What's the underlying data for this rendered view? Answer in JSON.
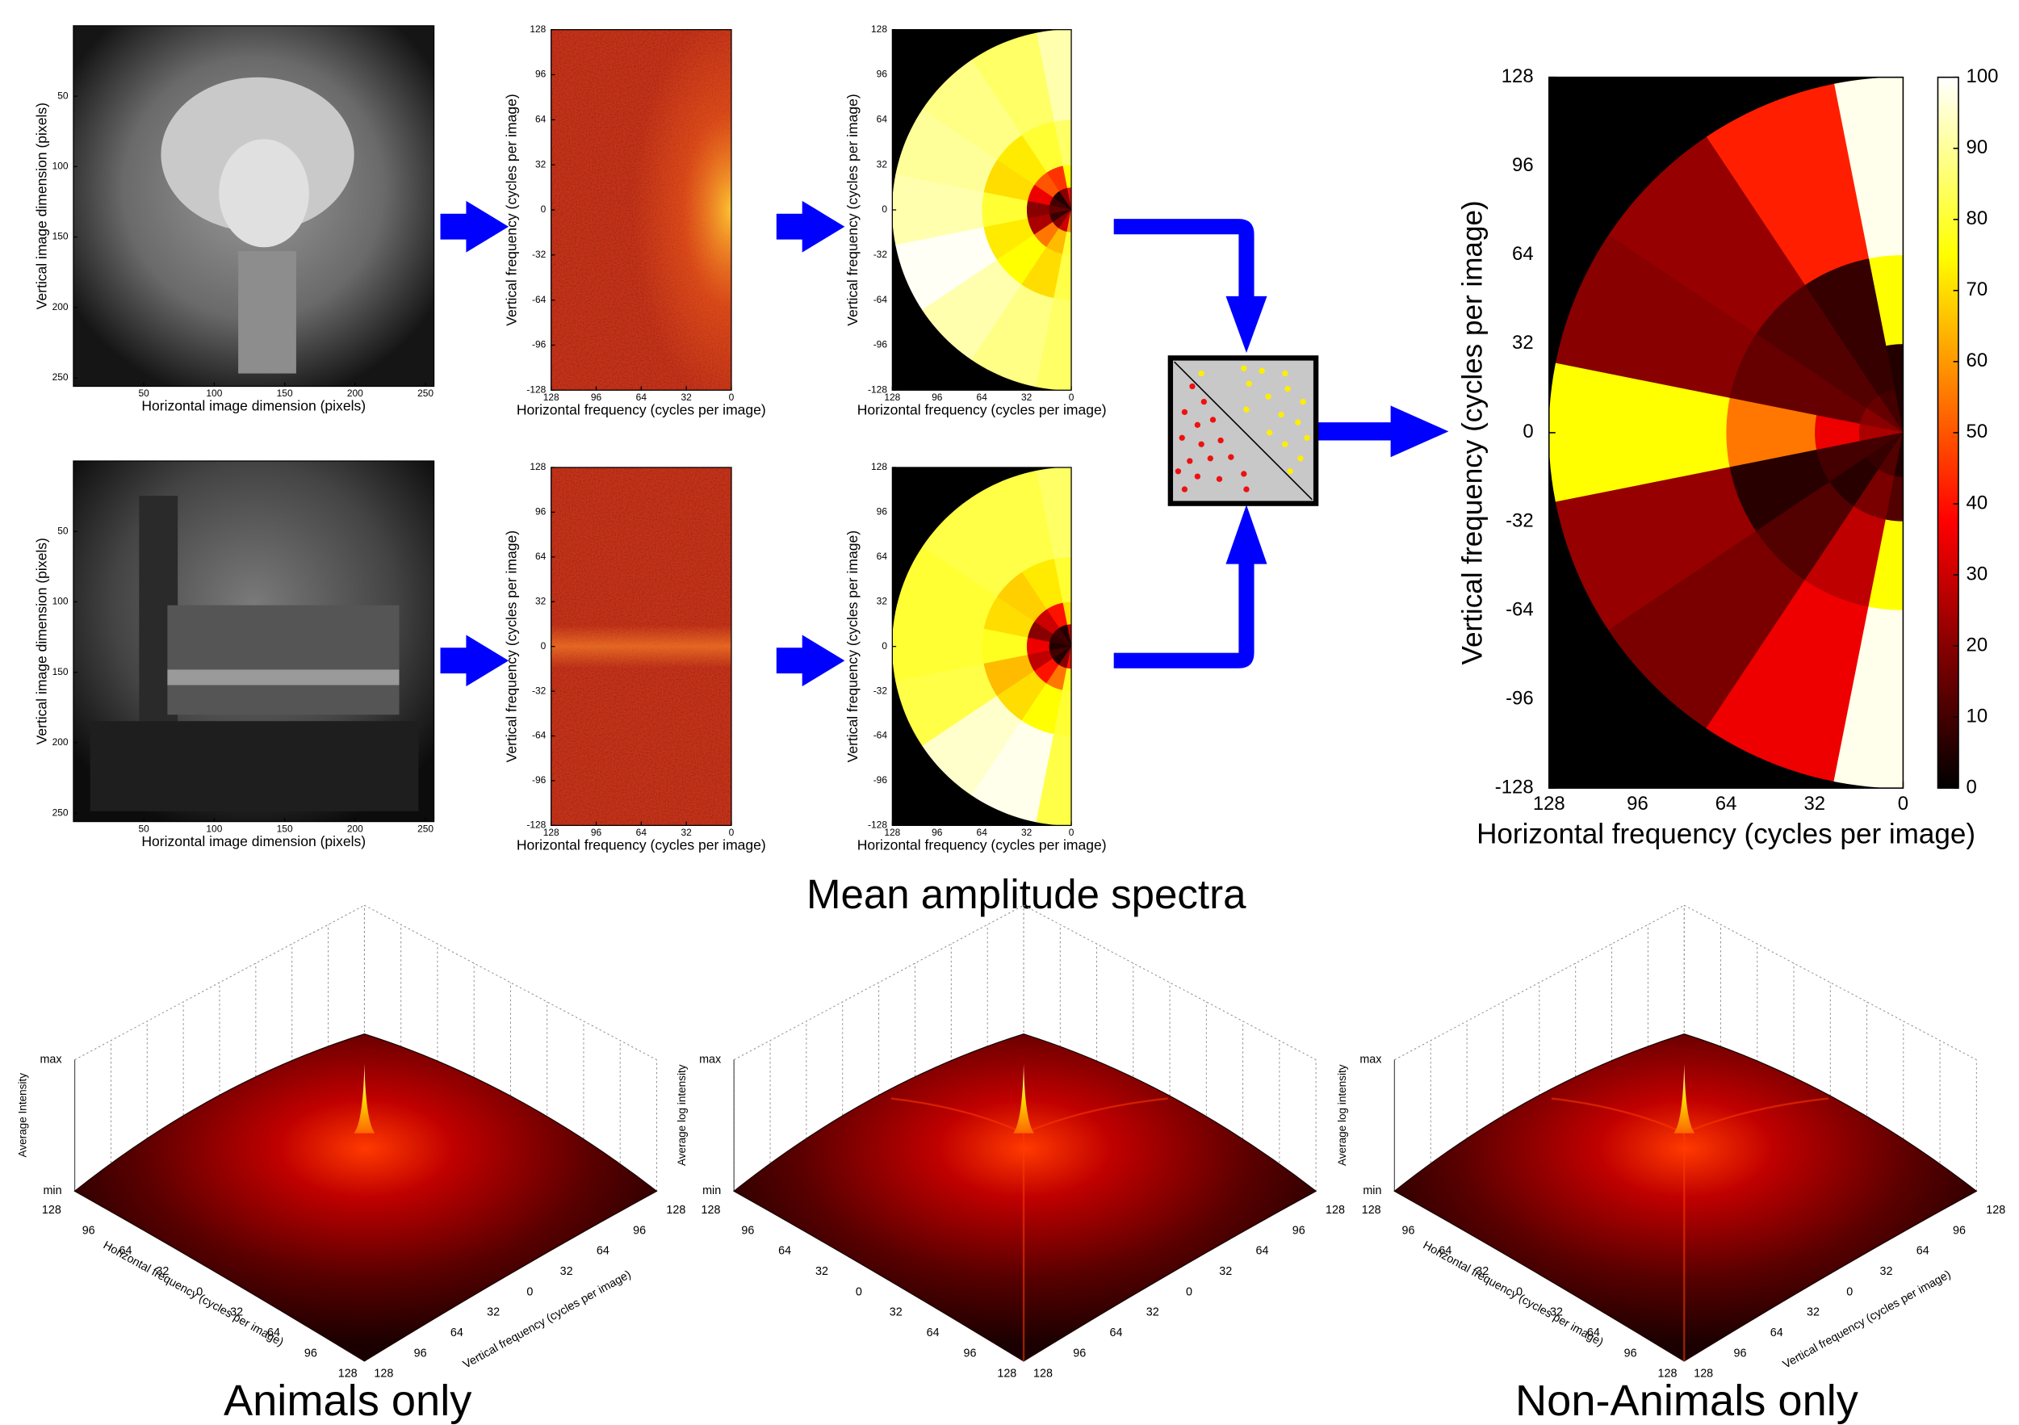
{
  "image_panels": [
    {
      "xlabel": "Horizontal image dimension (pixels)",
      "ylabel": "Vertical image dimension (pixels)",
      "xlim": [
        0,
        256
      ],
      "ylim": [
        256,
        0
      ],
      "xticks": [
        50,
        100,
        150,
        200,
        250
      ],
      "yticks": [
        50,
        100,
        150,
        200,
        250
      ]
    },
    {
      "xlabel": "Horizontal image dimension (pixels)",
      "ylabel": "Vertical image dimension (pixels)",
      "xlim": [
        0,
        256
      ],
      "ylim": [
        256,
        0
      ],
      "xticks": [
        50,
        100,
        150,
        200,
        250
      ],
      "yticks": [
        50,
        100,
        150,
        200,
        250
      ]
    }
  ],
  "spectrum_panels": [
    {
      "xlabel": "Horizontal frequency (cycles per image)",
      "ylabel": "Vertical frequency (cycles per image)",
      "xlim": [
        128,
        0
      ],
      "ylim": [
        -128,
        128
      ],
      "xticks": [
        128,
        96,
        64,
        32,
        0
      ],
      "yticks": [
        128,
        96,
        64,
        32,
        0,
        -32,
        -64,
        -96,
        -128
      ]
    },
    {
      "xlabel": "Horizontal frequency (cycles per image)",
      "ylabel": "Vertical frequency (cycles per image)",
      "xlim": [
        128,
        0
      ],
      "ylim": [
        -128,
        128
      ],
      "xticks": [
        128,
        96,
        64,
        32,
        0
      ],
      "yticks": [
        128,
        96,
        64,
        32,
        0,
        -32,
        -64,
        -96,
        -128
      ]
    }
  ],
  "polar_panels": [
    {
      "xlabel": "Horizontal frequency (cycles per image)",
      "ylabel": "Vertical frequency (cycles per image)",
      "xlim": [
        128,
        0
      ],
      "ylim": [
        -128,
        128
      ],
      "xticks": [
        128,
        96,
        64,
        32,
        0
      ],
      "yticks": [
        128,
        96,
        64,
        32,
        0,
        -32,
        -64,
        -96,
        -128
      ],
      "rings": [
        0,
        16,
        32,
        64,
        128
      ],
      "angles": [
        90,
        78.75,
        56.25,
        33.75,
        11.25,
        -11.25,
        -33.75,
        -56.25,
        -78.75,
        -90
      ],
      "values": [
        [
          40,
          20,
          5,
          10,
          15,
          8,
          20,
          30,
          60
        ],
        [
          75,
          45,
          50,
          35,
          20,
          25,
          55,
          65,
          80
        ],
        [
          85,
          80,
          72,
          70,
          80,
          72,
          75,
          70,
          82
        ],
        [
          92,
          85,
          88,
          90,
          92,
          99,
          92,
          88,
          85
        ]
      ]
    },
    {
      "xlabel": "Horizontal frequency (cycles per image)",
      "ylabel": "Vertical frequency (cycles per image)",
      "xlim": [
        128,
        0
      ],
      "ylim": [
        -128,
        128
      ],
      "xticks": [
        128,
        96,
        64,
        32,
        0
      ],
      "yticks": [
        128,
        96,
        64,
        32,
        0,
        -32,
        -64,
        -96,
        -128
      ],
      "rings": [
        0,
        16,
        32,
        64,
        128
      ],
      "angles": [
        90,
        78.75,
        56.25,
        33.75,
        11.25,
        -11.25,
        -33.75,
        -56.25,
        -78.75,
        -90
      ],
      "values": [
        [
          30,
          5,
          10,
          8,
          5,
          10,
          5,
          20,
          40
        ],
        [
          70,
          40,
          30,
          20,
          35,
          28,
          40,
          55,
          78
        ],
        [
          80,
          72,
          68,
          70,
          78,
          65,
          70,
          75,
          80
        ],
        [
          85,
          82,
          82,
          80,
          80,
          82,
          95,
          98,
          82
        ]
      ]
    }
  ],
  "main_polar": {
    "xlabel": "Horizontal frequency (cycles per image)",
    "ylabel": "Vertical frequency (cycles per image)",
    "xlim": [
      128,
      0
    ],
    "ylim": [
      -128,
      128
    ],
    "xticks": [
      128,
      96,
      64,
      32,
      0
    ],
    "yticks": [
      128,
      96,
      64,
      32,
      0,
      -32,
      -64,
      -96,
      -128
    ],
    "rings": [
      0,
      16,
      32,
      64,
      128
    ],
    "angles": [
      90,
      78.75,
      56.25,
      33.75,
      11.25,
      -11.25,
      -33.75,
      -56.25,
      -78.75,
      -90
    ],
    "values": [
      [
        5,
        10,
        15,
        20,
        25,
        10,
        8,
        12,
        5
      ],
      [
        5,
        8,
        12,
        15,
        35,
        10,
        6,
        18,
        12
      ],
      [
        75,
        8,
        12,
        15,
        55,
        6,
        12,
        28,
        75
      ],
      [
        98,
        42,
        22,
        20,
        75,
        22,
        18,
        35,
        98
      ]
    ],
    "colorbar": {
      "clim": [
        0,
        100
      ],
      "ticks": [
        0,
        10,
        20,
        30,
        40,
        50,
        60,
        70,
        80,
        90,
        100
      ]
    }
  },
  "caption": "Mean amplitude spectra",
  "surface_panels": [
    {
      "zlabel": "Average Intensity",
      "zticks": [
        "max",
        "min"
      ],
      "xlabel": "Horizontal frequency (cycles per image)",
      "ylabel": "Vertical frequency (cycles per image)",
      "xticks": [
        128,
        96,
        64,
        32,
        0,
        32,
        64,
        96,
        128
      ],
      "yticks": [
        128,
        96,
        64,
        32,
        0,
        32,
        64,
        96,
        128
      ]
    },
    {
      "zlabel": "Average log intensity",
      "zticks": [
        "max",
        "min"
      ],
      "xticks": [
        128,
        96,
        64,
        32,
        0,
        32,
        64,
        96,
        128
      ],
      "yticks": [
        128,
        96,
        64,
        32,
        0,
        32,
        64,
        96,
        128
      ]
    },
    {
      "zlabel": "Average log intensity",
      "zticks": [
        "max",
        "min"
      ],
      "xlabel": "Horizontal frequency (cycles per image)",
      "ylabel": "Vertical frequency (cycles per image)",
      "xticks": [
        128,
        96,
        64,
        32,
        0,
        32,
        64,
        96,
        128
      ],
      "yticks": [
        128,
        96,
        64,
        32,
        0,
        32,
        64,
        96,
        128
      ]
    }
  ],
  "group_labels": [
    "Animals only",
    "Non-Animals only"
  ]
}
